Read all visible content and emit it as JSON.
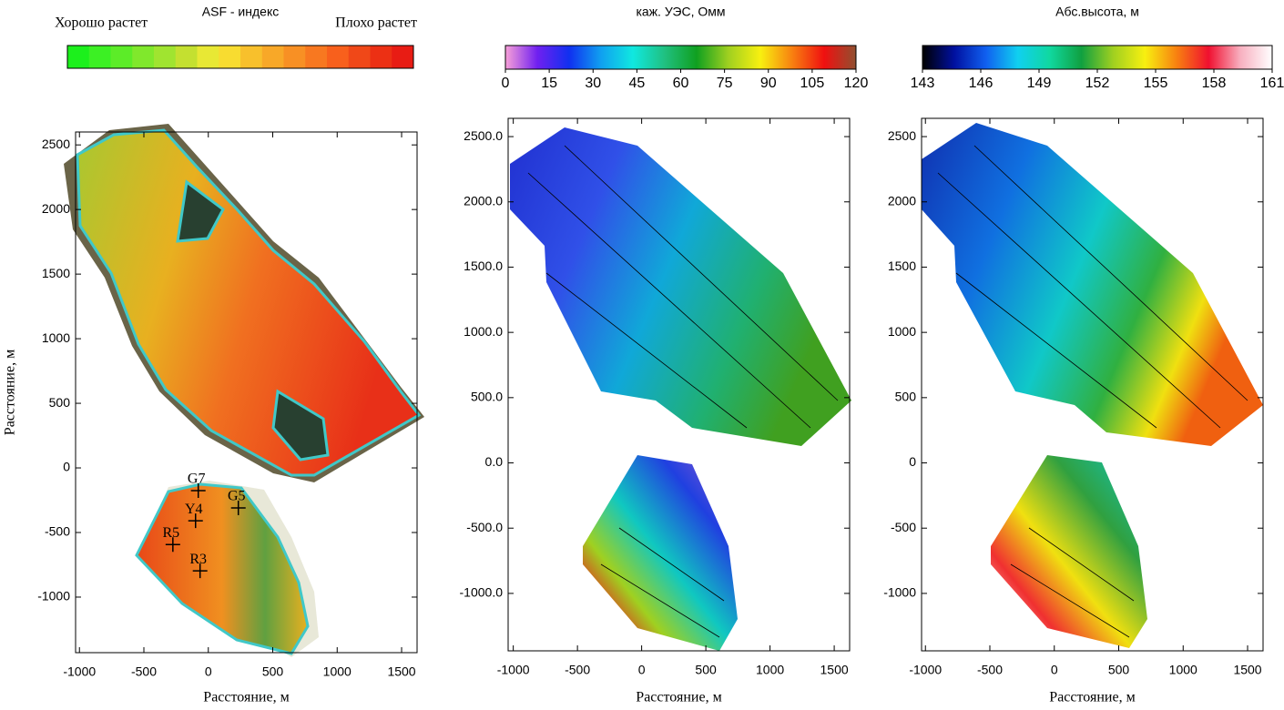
{
  "chart_data": [
    {
      "type": "map",
      "colorbar": {
        "title": "ASF - индекс",
        "left_label": "Хорошо растет",
        "right_label": "Плохо растет",
        "colors": [
          "#1cf01c",
          "#3cf024",
          "#5cec28",
          "#80e82c",
          "#a0e430",
          "#c4e030",
          "#e8e834",
          "#f8dc30",
          "#f8c02c",
          "#f8a828",
          "#f89024",
          "#f87820",
          "#f8601c",
          "#f04818",
          "#ec3014",
          "#e81c14"
        ]
      },
      "x_label": "Расстояние, м",
      "y_label": "Расстояние, м",
      "xlim": [
        -1030,
        1620
      ],
      "ylim": [
        -1430,
        2600
      ],
      "xticks": [
        -1000,
        -500,
        0,
        500,
        1000,
        1500
      ],
      "yticks": [
        -1000,
        -500,
        0,
        500,
        1000,
        1500,
        2000,
        2500
      ],
      "markers": [
        {
          "name": "G7",
          "x": -78,
          "y": -176
        },
        {
          "name": "G5",
          "x": 233,
          "y": -310
        },
        {
          "name": "Y4",
          "x": -99,
          "y": -409
        },
        {
          "name": "R5",
          "x": -275,
          "y": -593
        },
        {
          "name": "R3",
          "x": -64,
          "y": -797
        }
      ]
    },
    {
      "type": "map",
      "colorbar": {
        "title": "каж. УЭС, Омм",
        "lim": [
          0,
          120
        ],
        "ticks": [
          0,
          15,
          30,
          45,
          60,
          75,
          90,
          105,
          120
        ],
        "colors": [
          "#f8a0d8",
          "#7020f0",
          "#1030f0",
          "#10a0f0",
          "#10e8e0",
          "#20c080",
          "#10a020",
          "#a0d020",
          "#f8f010",
          "#f88010",
          "#f01010",
          "#905030"
        ]
      },
      "x_label": "Расстояние, м",
      "xlim": [
        -1040,
        1620
      ],
      "ylim": [
        -1440,
        2640
      ],
      "xticks": [
        -1000,
        -500,
        0,
        500,
        1000,
        1500
      ],
      "yticks": [
        {
          "value": -1000,
          "label": "-1000.0"
        },
        {
          "value": -500,
          "label": "-500.0"
        },
        {
          "value": 0,
          "label": "0.0"
        },
        {
          "value": 500,
          "label": "500.0"
        },
        {
          "value": 1000,
          "label": "1000.0"
        },
        {
          "value": 1500,
          "label": "1500.0"
        },
        {
          "value": 2000,
          "label": "2000.0"
        },
        {
          "value": 2500,
          "label": "2500.0"
        }
      ]
    },
    {
      "type": "map",
      "colorbar": {
        "title": "Абс.высота, м",
        "lim": [
          143,
          161
        ],
        "ticks": [
          143,
          146,
          149,
          152,
          155,
          158,
          161
        ],
        "colors": [
          "#000000",
          "#0010a0",
          "#1060f0",
          "#10d0f0",
          "#10d8a0",
          "#10a040",
          "#a0d020",
          "#f8f010",
          "#f88010",
          "#f01030",
          "#f8b0c0",
          "#ffffff"
        ]
      },
      "x_label": "Расстояние, м",
      "xlim": [
        -1030,
        1620
      ],
      "ylim": [
        -1440,
        2640
      ],
      "xticks": [
        -1000,
        -500,
        0,
        500,
        1000,
        1500
      ],
      "yticks": [
        -1000,
        -500,
        0,
        500,
        1000,
        1500,
        2000,
        2500
      ]
    }
  ]
}
